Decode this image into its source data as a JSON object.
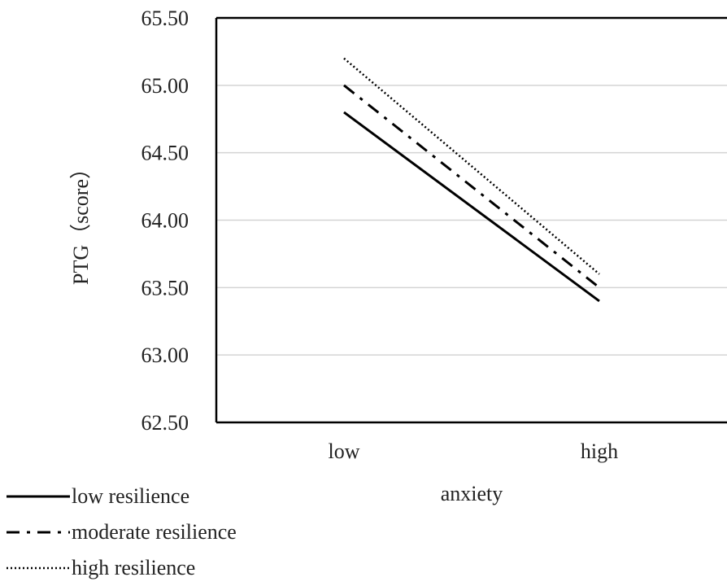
{
  "chart_data": {
    "type": "line",
    "categories": [
      "low",
      "high"
    ],
    "series": [
      {
        "name": "low resilience",
        "values": [
          64.8,
          63.4
        ],
        "style": "solid"
      },
      {
        "name": "moderate resilience",
        "values": [
          65.0,
          63.5
        ],
        "style": "dash-dot"
      },
      {
        "name": "high resilience",
        "values": [
          65.2,
          63.6
        ],
        "style": "dotted"
      }
    ],
    "xlabel": "anxiety",
    "ylabel": "PTG（score）",
    "ylim": [
      62.5,
      65.5
    ],
    "yticks": [
      "62.50",
      "63.00",
      "63.50",
      "64.00",
      "64.50",
      "65.00",
      "65.50"
    ],
    "grid": true,
    "legend_position": "bottom-left",
    "colors": {
      "line": "#000000",
      "grid": "#d4d4d4",
      "frame": "#000000"
    }
  }
}
